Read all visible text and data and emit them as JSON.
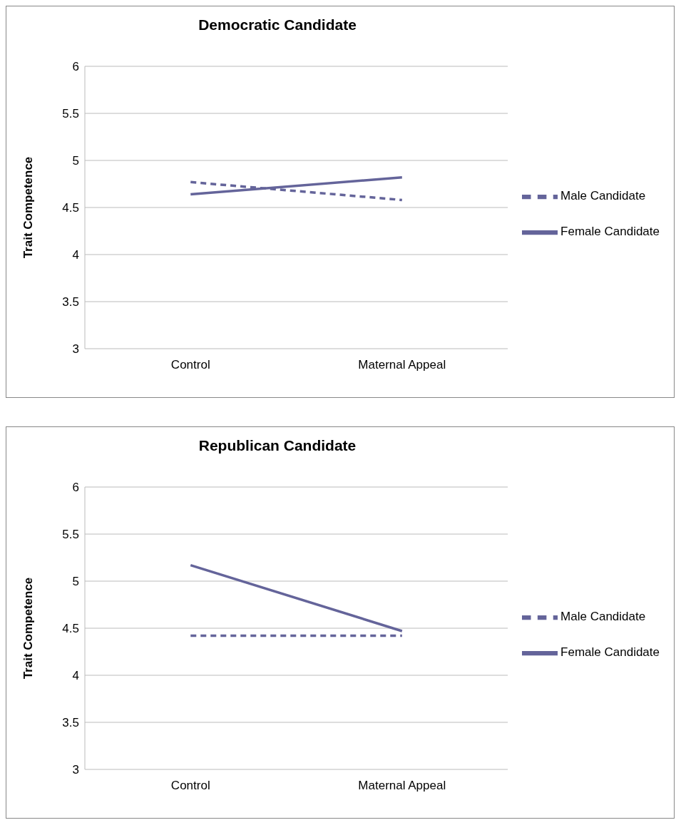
{
  "chart_data": [
    {
      "type": "line",
      "title": "Democratic Candidate",
      "ylabel": "Trait Competence",
      "categories": [
        "Control",
        "Maternal Appeal"
      ],
      "ylim": [
        3,
        6
      ],
      "yticks": [
        3,
        3.5,
        4,
        4.5,
        5,
        5.5,
        6
      ],
      "grid": "y",
      "legend": "right",
      "marker": "none",
      "series": [
        {
          "name": "Male Candidate",
          "color": "#64649a",
          "values": [
            4.77,
            4.58
          ],
          "line_style": "dashed"
        },
        {
          "name": "Female Candidate",
          "color": "#64649a",
          "values": [
            4.64,
            4.82
          ],
          "line_style": "solid"
        }
      ]
    },
    {
      "type": "line",
      "title": "Republican Candidate",
      "ylabel": "Trait Competence",
      "categories": [
        "Control",
        "Maternal Appeal"
      ],
      "ylim": [
        3,
        6
      ],
      "yticks": [
        3,
        3.5,
        4,
        4.5,
        5,
        5.5,
        6
      ],
      "grid": "y",
      "legend": "right",
      "marker": "none",
      "series": [
        {
          "name": "Male Candidate",
          "color": "#64649a",
          "values": [
            4.42,
            4.42
          ],
          "line_style": "dashed"
        },
        {
          "name": "Female Candidate",
          "color": "#64649a",
          "values": [
            5.17,
            4.47
          ],
          "line_style": "solid"
        }
      ]
    }
  ]
}
